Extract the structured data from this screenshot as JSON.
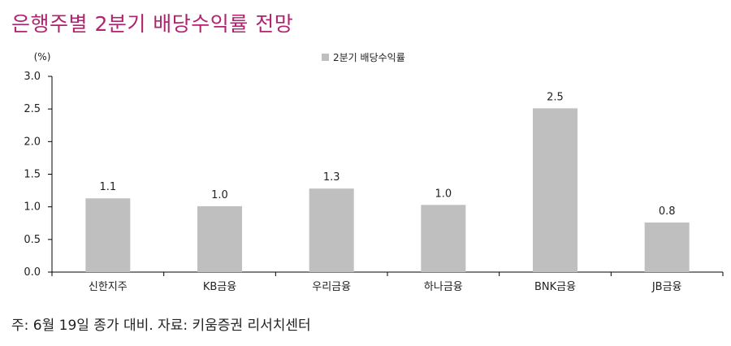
{
  "title": "은행주별 2분기 배당수익률 전망",
  "note": "주: 6월 19일 종가 대비. 자료: 키움증권 리서치센터",
  "colors": {
    "title": "#b0236e",
    "bar": "#bfbfbf",
    "axis": "#000000",
    "text": "#222222"
  },
  "chart_data": {
    "type": "bar",
    "unit_label": "(%)",
    "categories": [
      "신한지주",
      "KB금융",
      "우리금융",
      "하나금융",
      "BNK금융",
      "JB금융"
    ],
    "series": [
      {
        "name": "2분기 배당수익률",
        "values": [
          1.13,
          1.01,
          1.28,
          1.03,
          2.51,
          0.76
        ]
      }
    ],
    "data_labels": [
      "1.1",
      "1.0",
      "1.3",
      "1.0",
      "2.5",
      "0.8"
    ],
    "ylim": [
      0,
      3.0
    ],
    "yticks": [
      "3.0",
      "2.5",
      "2.0",
      "1.5",
      "1.0",
      "0.5",
      "0.0"
    ],
    "legend": "top-center",
    "grid": false
  }
}
